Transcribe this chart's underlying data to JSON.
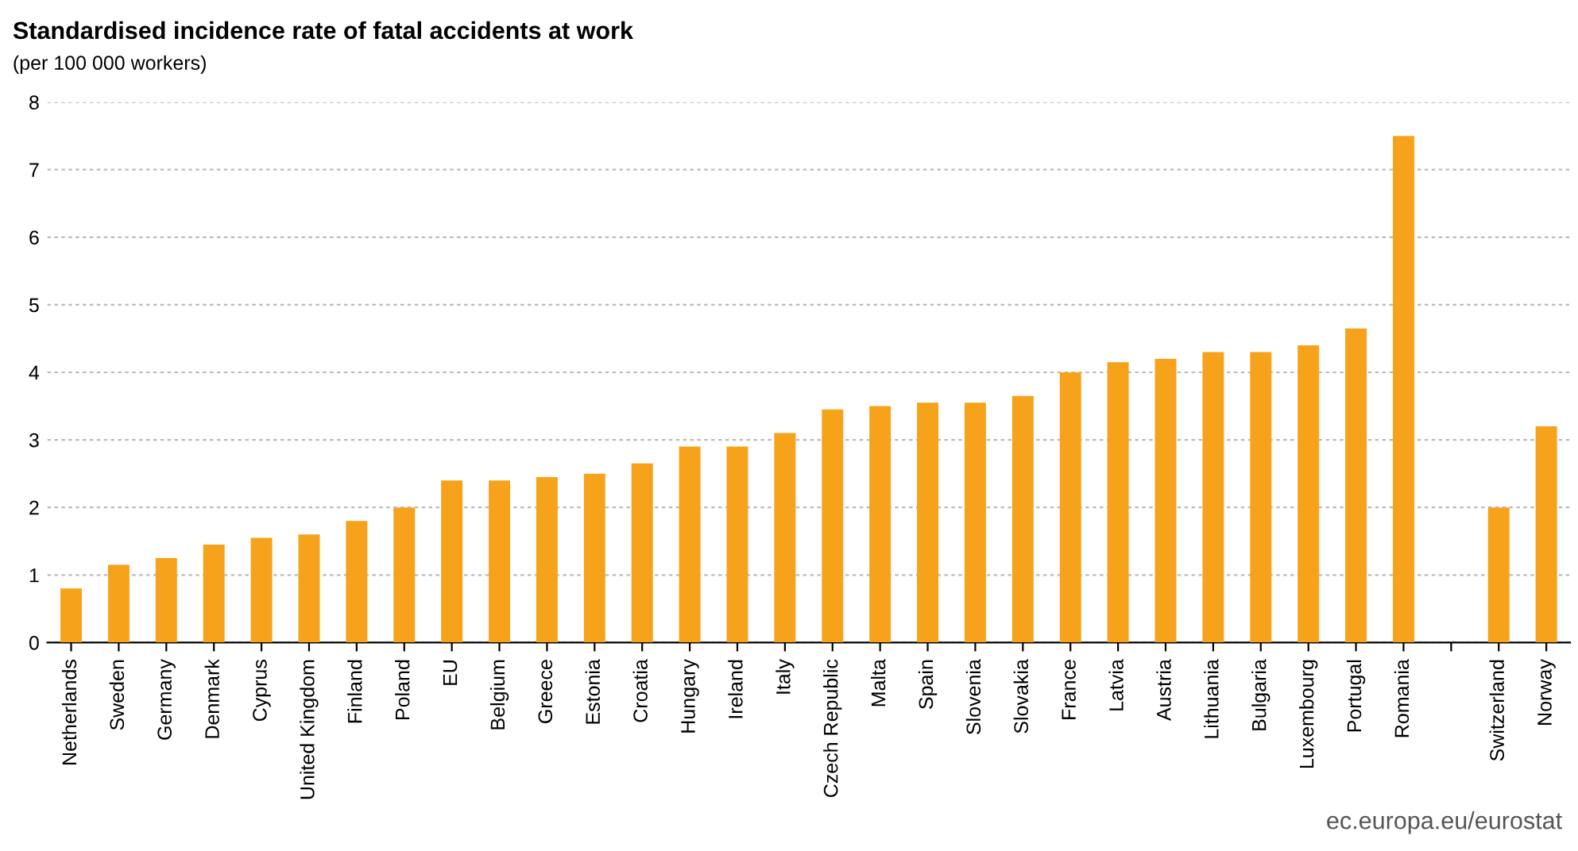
{
  "chart_data": {
    "type": "bar",
    "title": "Standardised incidence rate of fatal accidents at work",
    "subtitle": "(per 100 000 workers)",
    "categories": [
      "Netherlands",
      "Sweden",
      "Germany",
      "Denmark",
      "Cyprus",
      "United Kingdom",
      "Finland",
      "Poland",
      "EU",
      "Belgium",
      "Greece",
      "Estonia",
      "Croatia",
      "Hungary",
      "Ireland",
      "Italy",
      "Czech Republic",
      "Malta",
      "Spain",
      "Slovenia",
      "Slovakia",
      "France",
      "Latvia",
      "Austria",
      "Lithuania",
      "Bulgaria",
      "Luxembourg",
      "Portugal",
      "Romania",
      null,
      "Switzerland",
      "Norway"
    ],
    "values": [
      0.8,
      1.15,
      1.25,
      1.45,
      1.55,
      1.6,
      1.8,
      2.0,
      2.4,
      2.4,
      2.45,
      2.5,
      2.65,
      2.9,
      2.9,
      3.1,
      3.45,
      3.5,
      3.55,
      3.55,
      3.65,
      4.0,
      4.15,
      4.2,
      4.3,
      4.3,
      4.4,
      4.65,
      7.5,
      null,
      2.0,
      3.2
    ],
    "color": "#f7a21b",
    "ylim": [
      0,
      8
    ],
    "yticks": [
      0,
      1,
      2,
      3,
      4,
      5,
      6,
      7,
      8
    ],
    "grid": "y",
    "legend": false,
    "annotations": [
      "ec.europa.eu/eurostat"
    ]
  }
}
